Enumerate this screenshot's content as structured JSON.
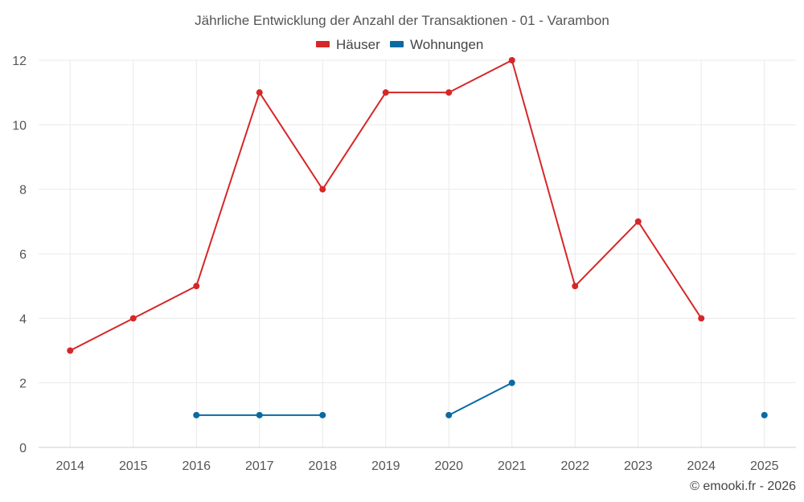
{
  "chart_data": {
    "type": "line",
    "title": "Jährliche Entwicklung der Anzahl der Transaktionen - 01 - Varambon",
    "categories": [
      "2014",
      "2015",
      "2016",
      "2017",
      "2018",
      "2019",
      "2020",
      "2021",
      "2022",
      "2023",
      "2024",
      "2025"
    ],
    "ylim": [
      0,
      12
    ],
    "yticks": [
      0,
      2,
      4,
      6,
      8,
      10,
      12
    ],
    "xlabel": "",
    "ylabel": "",
    "grid": true,
    "legend_position": "top-center",
    "series": [
      {
        "name": "Häuser",
        "color": "#d62728",
        "values": [
          3,
          4,
          5,
          11,
          8,
          11,
          11,
          12,
          5,
          7,
          4,
          null
        ]
      },
      {
        "name": "Wohnungen",
        "color": "#0a6aa1",
        "values": [
          null,
          null,
          1,
          1,
          1,
          null,
          1,
          2,
          null,
          null,
          null,
          1
        ]
      }
    ]
  },
  "credit": "© emooki.fr - 2026"
}
